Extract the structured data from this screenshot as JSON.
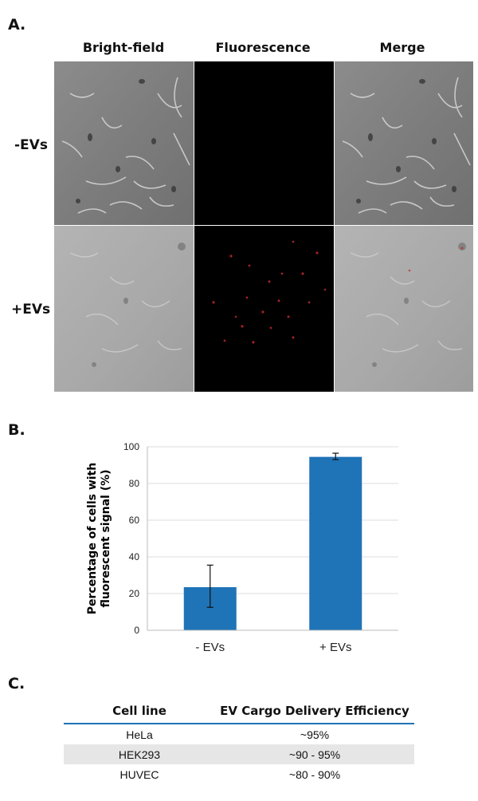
{
  "panel_a": {
    "label": "A.",
    "columns": [
      "Bright-field",
      "Fluorescence",
      "Merge"
    ],
    "rows": [
      "-EVs",
      "+EVs"
    ]
  },
  "panel_b": {
    "label": "B."
  },
  "panel_c": {
    "label": "C.",
    "headers": [
      "Cell line",
      "EV Cargo Delivery Efficiency"
    ],
    "rows": [
      {
        "cell_line": "HeLa",
        "efficiency": "~95%"
      },
      {
        "cell_line": "HEK293",
        "efficiency": "~90 - 95%"
      },
      {
        "cell_line": "HUVEC",
        "efficiency": "~80 - 90%"
      }
    ]
  },
  "colors": {
    "bar": "#1f73b7",
    "fluorescence_bg": "#000000",
    "signal": "#c0282c"
  },
  "chart_data": {
    "type": "bar",
    "categories": [
      "- EVs",
      "+ EVs"
    ],
    "values": [
      23.5,
      94.5
    ],
    "error_low": [
      12.5,
      93
    ],
    "error_high": [
      35.5,
      96.5
    ],
    "ylabel": "Percentage of cells with fluorescent signal (%)",
    "yticks": [
      0,
      20,
      40,
      60,
      80,
      100
    ],
    "ylim": [
      0,
      100
    ],
    "grid": true,
    "legend": "none"
  }
}
